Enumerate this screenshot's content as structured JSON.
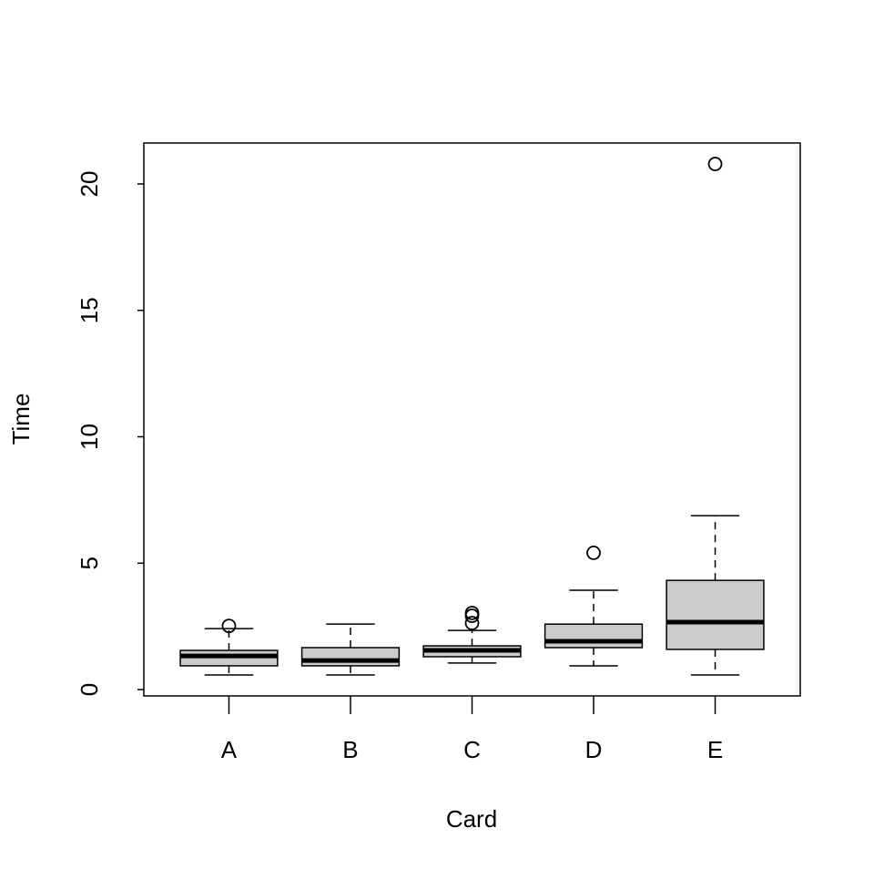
{
  "chart_data": {
    "type": "boxplot",
    "xlabel": "Card",
    "ylabel": "Time",
    "categories": [
      "A",
      "B",
      "C",
      "D",
      "E"
    ],
    "boxes": [
      {
        "min": 0.58,
        "q1": 0.94,
        "median": 1.33,
        "q3": 1.55,
        "max": 2.41,
        "outliers": [
          2.52
        ]
      },
      {
        "min": 0.58,
        "q1": 0.94,
        "median": 1.15,
        "q3": 1.66,
        "max": 2.59,
        "outliers": []
      },
      {
        "min": 1.05,
        "q1": 1.3,
        "median": 1.55,
        "q3": 1.73,
        "max": 2.34,
        "outliers": [
          3.03,
          2.92,
          2.63
        ]
      },
      {
        "min": 0.94,
        "q1": 1.66,
        "median": 1.91,
        "q3": 2.59,
        "max": 3.93,
        "outliers": [
          5.41
        ]
      },
      {
        "min": 0.58,
        "q1": 1.59,
        "median": 2.67,
        "q3": 4.32,
        "max": 6.88,
        "outliers": [
          20.79
        ]
      }
    ],
    "color": "#cccccc",
    "xlim": [
      0.3,
      5.7
    ],
    "ylim": [
      -0.25,
      21.62
    ],
    "yticks": [
      0,
      5,
      10,
      15,
      20
    ]
  }
}
